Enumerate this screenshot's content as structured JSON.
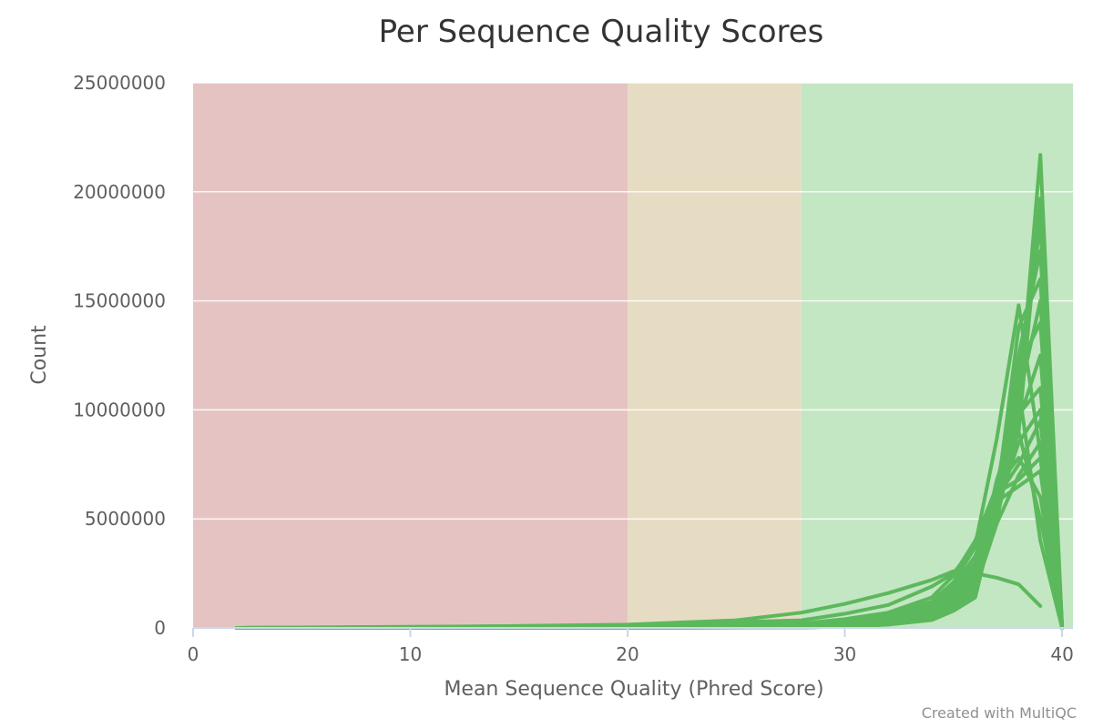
{
  "chart_data": {
    "type": "line",
    "title": "Per Sequence Quality Scores",
    "xlabel": "Mean Sequence Quality (Phred Score)",
    "ylabel": "Count",
    "xlim": [
      0,
      40.5
    ],
    "ylim": [
      0,
      25000000
    ],
    "x_ticks": [
      "0",
      "10",
      "20",
      "30",
      "40"
    ],
    "y_ticks": [
      "0",
      "5000000",
      "10000000",
      "15000000",
      "20000000",
      "25000000"
    ],
    "grid": true,
    "legend": "none",
    "line_color": "#5cb85c",
    "bands": [
      {
        "from": 0,
        "to": 20,
        "color": "#e6c3c3"
      },
      {
        "from": 20,
        "to": 28,
        "color": "#e6dcc3"
      },
      {
        "from": 28,
        "to": 40.5,
        "color": "#c3e6c3"
      }
    ],
    "series": [
      {
        "points": [
          [
            2,
            0
          ],
          [
            10,
            30000
          ],
          [
            20,
            150000
          ],
          [
            25,
            350000
          ],
          [
            28,
            700000
          ],
          [
            30,
            1100000
          ],
          [
            32,
            1600000
          ],
          [
            34,
            2200000
          ],
          [
            35,
            2600000
          ],
          [
            36,
            2500000
          ],
          [
            37,
            2300000
          ],
          [
            38,
            2000000
          ],
          [
            39,
            1000000
          ]
        ]
      },
      {
        "points": [
          [
            2,
            0
          ],
          [
            20,
            120000
          ],
          [
            28,
            350000
          ],
          [
            30,
            650000
          ],
          [
            32,
            1050000
          ],
          [
            34,
            1900000
          ],
          [
            35,
            2500000
          ],
          [
            36,
            3800000
          ],
          [
            37,
            8700000
          ],
          [
            38,
            14800000
          ],
          [
            39,
            8000000
          ],
          [
            40,
            0
          ]
        ]
      },
      {
        "points": [
          [
            2,
            0
          ],
          [
            20,
            80000
          ],
          [
            28,
            200000
          ],
          [
            30,
            400000
          ],
          [
            32,
            700000
          ],
          [
            34,
            1400000
          ],
          [
            35,
            2400000
          ],
          [
            36,
            4000000
          ],
          [
            37,
            6500000
          ],
          [
            38,
            10000000
          ],
          [
            39,
            21700000
          ],
          [
            40,
            0
          ]
        ]
      },
      {
        "points": [
          [
            2,
            0
          ],
          [
            20,
            60000
          ],
          [
            28,
            150000
          ],
          [
            30,
            350000
          ],
          [
            32,
            600000
          ],
          [
            34,
            1200000
          ],
          [
            35,
            2100000
          ],
          [
            36,
            3700000
          ],
          [
            37,
            6200000
          ],
          [
            38,
            9000000
          ],
          [
            39,
            19700000
          ],
          [
            40,
            0
          ]
        ]
      },
      {
        "points": [
          [
            2,
            0
          ],
          [
            20,
            50000
          ],
          [
            28,
            120000
          ],
          [
            30,
            300000
          ],
          [
            32,
            550000
          ],
          [
            34,
            1100000
          ],
          [
            35,
            1900000
          ],
          [
            36,
            3300000
          ],
          [
            37,
            5800000
          ],
          [
            38,
            11500000
          ],
          [
            39,
            18500000
          ],
          [
            40,
            0
          ]
        ]
      },
      {
        "points": [
          [
            2,
            0
          ],
          [
            20,
            40000
          ],
          [
            28,
            100000
          ],
          [
            30,
            250000
          ],
          [
            32,
            480000
          ],
          [
            34,
            950000
          ],
          [
            35,
            1700000
          ],
          [
            36,
            3000000
          ],
          [
            37,
            5500000
          ],
          [
            38,
            12500000
          ],
          [
            39,
            17300000
          ],
          [
            40,
            0
          ]
        ]
      },
      {
        "points": [
          [
            2,
            0
          ],
          [
            20,
            40000
          ],
          [
            28,
            90000
          ],
          [
            30,
            220000
          ],
          [
            32,
            420000
          ],
          [
            34,
            850000
          ],
          [
            35,
            1500000
          ],
          [
            36,
            2800000
          ],
          [
            37,
            6000000
          ],
          [
            38,
            13800000
          ],
          [
            39,
            16000000
          ],
          [
            40,
            0
          ]
        ]
      },
      {
        "points": [
          [
            2,
            0
          ],
          [
            20,
            30000
          ],
          [
            28,
            80000
          ],
          [
            30,
            200000
          ],
          [
            32,
            380000
          ],
          [
            34,
            800000
          ],
          [
            35,
            1400000
          ],
          [
            36,
            2600000
          ],
          [
            37,
            5200000
          ],
          [
            38,
            10500000
          ],
          [
            39,
            15000000
          ],
          [
            40,
            0
          ]
        ]
      },
      {
        "points": [
          [
            2,
            0
          ],
          [
            20,
            30000
          ],
          [
            28,
            70000
          ],
          [
            30,
            180000
          ],
          [
            32,
            350000
          ],
          [
            34,
            700000
          ],
          [
            35,
            1300000
          ],
          [
            36,
            2500000
          ],
          [
            37,
            6500000
          ],
          [
            38,
            12000000
          ],
          [
            39,
            14000000
          ],
          [
            40,
            0
          ]
        ]
      },
      {
        "points": [
          [
            2,
            0
          ],
          [
            20,
            25000
          ],
          [
            28,
            60000
          ],
          [
            30,
            160000
          ],
          [
            32,
            320000
          ],
          [
            34,
            650000
          ],
          [
            35,
            1200000
          ],
          [
            36,
            2200000
          ],
          [
            37,
            5000000
          ],
          [
            38,
            9500000
          ],
          [
            39,
            12500000
          ],
          [
            40,
            0
          ]
        ]
      },
      {
        "points": [
          [
            2,
            0
          ],
          [
            20,
            25000
          ],
          [
            28,
            60000
          ],
          [
            30,
            150000
          ],
          [
            32,
            300000
          ],
          [
            34,
            620000
          ],
          [
            35,
            1150000
          ],
          [
            36,
            2400000
          ],
          [
            37,
            6800000
          ],
          [
            38,
            9800000
          ],
          [
            39,
            11000000
          ],
          [
            40,
            0
          ]
        ]
      },
      {
        "points": [
          [
            2,
            0
          ],
          [
            20,
            20000
          ],
          [
            28,
            50000
          ],
          [
            30,
            140000
          ],
          [
            32,
            280000
          ],
          [
            34,
            580000
          ],
          [
            35,
            1050000
          ],
          [
            36,
            2100000
          ],
          [
            37,
            5500000
          ],
          [
            38,
            8500000
          ],
          [
            39,
            10000000
          ],
          [
            40,
            0
          ]
        ]
      },
      {
        "points": [
          [
            2,
            0
          ],
          [
            20,
            20000
          ],
          [
            28,
            50000
          ],
          [
            30,
            130000
          ],
          [
            32,
            260000
          ],
          [
            34,
            550000
          ],
          [
            35,
            1000000
          ],
          [
            36,
            2000000
          ],
          [
            37,
            6000000
          ],
          [
            38,
            7500000
          ],
          [
            39,
            9500000
          ],
          [
            40,
            0
          ]
        ]
      },
      {
        "points": [
          [
            2,
            0
          ],
          [
            20,
            15000
          ],
          [
            28,
            40000
          ],
          [
            30,
            110000
          ],
          [
            32,
            230000
          ],
          [
            34,
            500000
          ],
          [
            35,
            950000
          ],
          [
            36,
            1800000
          ],
          [
            37,
            4800000
          ],
          [
            38,
            7000000
          ],
          [
            39,
            8500000
          ],
          [
            40,
            0
          ]
        ]
      },
      {
        "points": [
          [
            2,
            0
          ],
          [
            20,
            15000
          ],
          [
            28,
            40000
          ],
          [
            30,
            100000
          ],
          [
            32,
            200000
          ],
          [
            34,
            450000
          ],
          [
            35,
            900000
          ],
          [
            36,
            1700000
          ],
          [
            37,
            6200000
          ],
          [
            38,
            6800000
          ],
          [
            39,
            7800000
          ],
          [
            40,
            0
          ]
        ]
      },
      {
        "points": [
          [
            2,
            0
          ],
          [
            20,
            10000
          ],
          [
            28,
            30000
          ],
          [
            30,
            90000
          ],
          [
            32,
            180000
          ],
          [
            34,
            420000
          ],
          [
            35,
            850000
          ],
          [
            36,
            1600000
          ],
          [
            37,
            5800000
          ],
          [
            38,
            6500000
          ],
          [
            39,
            7200000
          ],
          [
            40,
            0
          ]
        ]
      },
      {
        "points": [
          [
            2,
            0
          ],
          [
            20,
            10000
          ],
          [
            28,
            30000
          ],
          [
            30,
            80000
          ],
          [
            32,
            170000
          ],
          [
            34,
            400000
          ],
          [
            35,
            820000
          ],
          [
            36,
            1500000
          ],
          [
            37,
            6500000
          ],
          [
            38,
            7800000
          ],
          [
            39,
            6000000
          ],
          [
            40,
            0
          ]
        ]
      },
      {
        "points": [
          [
            2,
            0
          ],
          [
            20,
            10000
          ],
          [
            28,
            25000
          ],
          [
            30,
            70000
          ],
          [
            32,
            160000
          ],
          [
            34,
            380000
          ],
          [
            35,
            800000
          ],
          [
            36,
            1450000
          ],
          [
            37,
            6000000
          ],
          [
            38,
            9000000
          ],
          [
            39,
            5000000
          ],
          [
            40,
            0
          ]
        ]
      },
      {
        "points": [
          [
            2,
            0
          ],
          [
            20,
            8000
          ],
          [
            28,
            20000
          ],
          [
            30,
            60000
          ],
          [
            32,
            150000
          ],
          [
            34,
            360000
          ],
          [
            35,
            780000
          ],
          [
            36,
            1400000
          ],
          [
            37,
            5500000
          ],
          [
            38,
            11000000
          ],
          [
            39,
            4000000
          ],
          [
            40,
            0
          ]
        ]
      }
    ]
  },
  "footer": {
    "credit": "Created with MultiQC"
  }
}
